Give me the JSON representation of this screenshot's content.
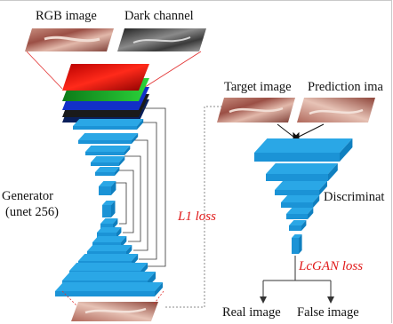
{
  "labels": {
    "rgb_image": "RGB image",
    "dark_channel": "Dark channel",
    "target_image": "Target image",
    "prediction_image": "Prediction ima",
    "generator_line1": "Generator",
    "generator_line2": "(unet 256)",
    "l1_loss": "L1 loss",
    "discriminator": "Discriminat",
    "lcgan_loss": "LcGAN loss",
    "real_image": "Real image",
    "false_image": "False image"
  },
  "colors": {
    "layer_top": "#2aa7e6",
    "layer_side": "#0f7fbf",
    "layer_front": "#1b93d6",
    "loss_text": "#e01818",
    "dashed_line": "#888888"
  }
}
